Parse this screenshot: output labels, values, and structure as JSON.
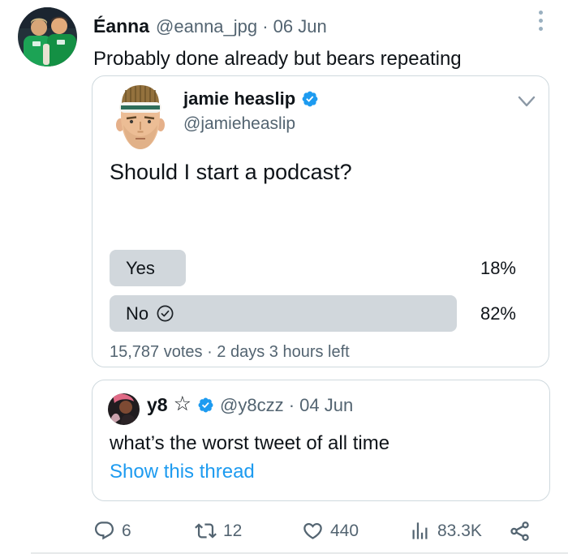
{
  "colors": {
    "text_primary": "#0f1419",
    "text_secondary": "#536471",
    "accent_blue": "#1d9bf0",
    "card_border": "#cfd9de",
    "poll_bar": "#d1d7dc"
  },
  "main_tweet": {
    "author": "Éanna",
    "handle_date": "@eanna_jpg · 06 Jun",
    "text": "Probably done already but bears repeating"
  },
  "quoted_tweet": {
    "author": "jamie heaslip",
    "handle": "@jamieheaslip",
    "question": "Should I start a podcast?",
    "poll": {
      "options": [
        {
          "label": "Yes",
          "percent": 18,
          "percent_label": "18%",
          "voted": false
        },
        {
          "label": "No",
          "percent": 82,
          "percent_label": "82%",
          "voted": true
        }
      ],
      "meta": "15,787 votes · 2 days 3 hours left"
    }
  },
  "inner_quoted_tweet": {
    "author": "y8",
    "star": "☆",
    "handle_date": "@y8czz · 04 Jun",
    "text": "what’s the worst tweet of all time",
    "link": "Show this thread"
  },
  "actions": {
    "reply_count": "6",
    "retweet_count": "12",
    "like_count": "440",
    "view_count": "83.3K"
  }
}
